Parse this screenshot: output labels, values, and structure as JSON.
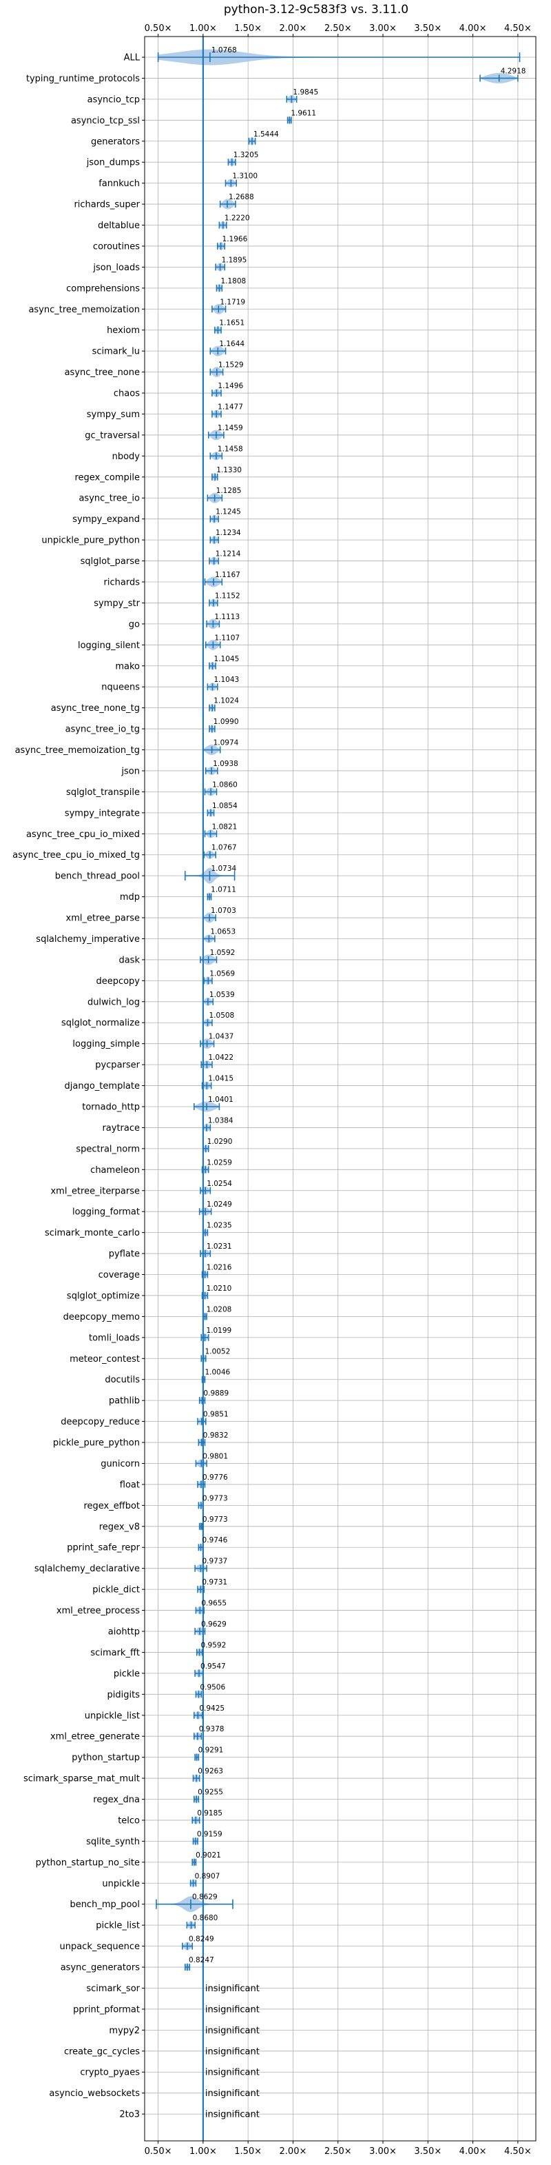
{
  "chart_data": {
    "type": "violin",
    "title": "python-3.12-9c583f3 vs. 3.11.0",
    "xlim": [
      0.35,
      4.7
    ],
    "x_ticks": [
      0.5,
      1.0,
      1.5,
      2.0,
      2.5,
      3.0,
      3.5,
      4.0,
      4.5
    ],
    "x_tick_labels": [
      "0.50×",
      "1.00×",
      "1.50×",
      "2.00×",
      "2.50×",
      "3.00×",
      "3.50×",
      "4.00×",
      "4.50×"
    ],
    "grid": true,
    "reference_line": 1.0,
    "accent_color": "#1f77b4",
    "violin_color": "#aac9e8",
    "benchmarks": [
      {
        "name": "ALL",
        "value": 1.0768,
        "label": "1.0768",
        "range": [
          0.5,
          4.52
        ]
      },
      {
        "name": "typing_runtime_protocols",
        "value": 4.2918,
        "label": "4.2918",
        "range": [
          4.08,
          4.5
        ]
      },
      {
        "name": "asyncio_tcp",
        "value": 1.9845,
        "label": "1.9845",
        "range": [
          1.93,
          2.04
        ]
      },
      {
        "name": "asyncio_tcp_ssl",
        "value": 1.9611,
        "label": "1.9611",
        "range": [
          1.94,
          1.98
        ]
      },
      {
        "name": "generators",
        "value": 1.5444,
        "label": "1.5444",
        "range": [
          1.51,
          1.58
        ]
      },
      {
        "name": "json_dumps",
        "value": 1.3205,
        "label": "1.3205",
        "range": [
          1.28,
          1.36
        ]
      },
      {
        "name": "fannkuch",
        "value": 1.31,
        "label": "1.3100",
        "range": [
          1.25,
          1.37
        ]
      },
      {
        "name": "richards_super",
        "value": 1.2688,
        "label": "1.2688",
        "range": [
          1.19,
          1.36
        ]
      },
      {
        "name": "deltablue",
        "value": 1.222,
        "label": "1.2220",
        "range": [
          1.18,
          1.26
        ]
      },
      {
        "name": "coroutines",
        "value": 1.1966,
        "label": "1.1966",
        "range": [
          1.16,
          1.24
        ]
      },
      {
        "name": "json_loads",
        "value": 1.1895,
        "label": "1.1895",
        "range": [
          1.14,
          1.24
        ]
      },
      {
        "name": "comprehensions",
        "value": 1.1808,
        "label": "1.1808",
        "range": [
          1.15,
          1.21
        ]
      },
      {
        "name": "async_tree_memoization",
        "value": 1.1719,
        "label": "1.1719",
        "range": [
          1.1,
          1.25
        ]
      },
      {
        "name": "hexiom",
        "value": 1.1651,
        "label": "1.1651",
        "range": [
          1.13,
          1.2
        ]
      },
      {
        "name": "scimark_lu",
        "value": 1.1644,
        "label": "1.1644",
        "range": [
          1.08,
          1.25
        ]
      },
      {
        "name": "async_tree_none",
        "value": 1.1529,
        "label": "1.1529",
        "range": [
          1.08,
          1.22
        ]
      },
      {
        "name": "chaos",
        "value": 1.1496,
        "label": "1.1496",
        "range": [
          1.1,
          1.2
        ]
      },
      {
        "name": "sympy_sum",
        "value": 1.1477,
        "label": "1.1477",
        "range": [
          1.1,
          1.2
        ]
      },
      {
        "name": "gc_traversal",
        "value": 1.1459,
        "label": "1.1459",
        "range": [
          1.06,
          1.23
        ]
      },
      {
        "name": "nbody",
        "value": 1.1458,
        "label": "1.1458",
        "range": [
          1.08,
          1.21
        ]
      },
      {
        "name": "regex_compile",
        "value": 1.133,
        "label": "1.1330",
        "range": [
          1.1,
          1.16
        ]
      },
      {
        "name": "async_tree_io",
        "value": 1.1285,
        "label": "1.1285",
        "range": [
          1.05,
          1.21
        ]
      },
      {
        "name": "sympy_expand",
        "value": 1.1245,
        "label": "1.1245",
        "range": [
          1.08,
          1.17
        ]
      },
      {
        "name": "unpickle_pure_python",
        "value": 1.1234,
        "label": "1.1234",
        "range": [
          1.08,
          1.17
        ]
      },
      {
        "name": "sqlglot_parse",
        "value": 1.1214,
        "label": "1.1214",
        "range": [
          1.07,
          1.17
        ]
      },
      {
        "name": "richards",
        "value": 1.1167,
        "label": "1.1167",
        "range": [
          1.02,
          1.21
        ]
      },
      {
        "name": "sympy_str",
        "value": 1.1152,
        "label": "1.1152",
        "range": [
          1.07,
          1.16
        ]
      },
      {
        "name": "go",
        "value": 1.1113,
        "label": "1.1113",
        "range": [
          1.04,
          1.18
        ]
      },
      {
        "name": "logging_silent",
        "value": 1.1107,
        "label": "1.1107",
        "range": [
          1.03,
          1.19
        ]
      },
      {
        "name": "mako",
        "value": 1.1045,
        "label": "1.1045",
        "range": [
          1.07,
          1.14
        ]
      },
      {
        "name": "nqueens",
        "value": 1.1043,
        "label": "1.1043",
        "range": [
          1.05,
          1.16
        ]
      },
      {
        "name": "async_tree_none_tg",
        "value": 1.1024,
        "label": "1.1024",
        "range": [
          1.07,
          1.13
        ]
      },
      {
        "name": "async_tree_io_tg",
        "value": 1.099,
        "label": "1.0990",
        "range": [
          1.07,
          1.13
        ]
      },
      {
        "name": "async_tree_memoization_tg",
        "value": 1.0974,
        "label": "1.0974",
        "range": [
          1.0,
          1.19
        ]
      },
      {
        "name": "json",
        "value": 1.0938,
        "label": "1.0938",
        "range": [
          1.03,
          1.16
        ]
      },
      {
        "name": "sqlglot_transpile",
        "value": 1.086,
        "label": "1.0860",
        "range": [
          1.02,
          1.15
        ]
      },
      {
        "name": "sympy_integrate",
        "value": 1.0854,
        "label": "1.0854",
        "range": [
          1.05,
          1.12
        ]
      },
      {
        "name": "async_tree_cpu_io_mixed",
        "value": 1.0821,
        "label": "1.0821",
        "range": [
          1.02,
          1.15
        ]
      },
      {
        "name": "async_tree_cpu_io_mixed_tg",
        "value": 1.0767,
        "label": "1.0767",
        "range": [
          1.01,
          1.14
        ]
      },
      {
        "name": "bench_thread_pool",
        "value": 1.0734,
        "label": "1.0734",
        "range": [
          0.8,
          1.35
        ]
      },
      {
        "name": "mdp",
        "value": 1.0711,
        "label": "1.0711",
        "range": [
          1.05,
          1.09
        ]
      },
      {
        "name": "xml_etree_parse",
        "value": 1.0703,
        "label": "1.0703",
        "range": [
          1.0,
          1.14
        ]
      },
      {
        "name": "sqlalchemy_imperative",
        "value": 1.0653,
        "label": "1.0653",
        "range": [
          1.0,
          1.13
        ]
      },
      {
        "name": "dask",
        "value": 1.0592,
        "label": "1.0592",
        "range": [
          0.97,
          1.15
        ]
      },
      {
        "name": "deepcopy",
        "value": 1.0569,
        "label": "1.0569",
        "range": [
          1.01,
          1.1
        ]
      },
      {
        "name": "dulwich_log",
        "value": 1.0539,
        "label": "1.0539",
        "range": [
          1.0,
          1.11
        ]
      },
      {
        "name": "sqlglot_normalize",
        "value": 1.0508,
        "label": "1.0508",
        "range": [
          1.0,
          1.1
        ]
      },
      {
        "name": "logging_simple",
        "value": 1.0437,
        "label": "1.0437",
        "range": [
          0.97,
          1.12
        ]
      },
      {
        "name": "pycparser",
        "value": 1.0422,
        "label": "1.0422",
        "range": [
          0.98,
          1.1
        ]
      },
      {
        "name": "django_template",
        "value": 1.0415,
        "label": "1.0415",
        "range": [
          0.99,
          1.09
        ]
      },
      {
        "name": "tornado_http",
        "value": 1.0401,
        "label": "1.0401",
        "range": [
          0.9,
          1.18
        ]
      },
      {
        "name": "raytrace",
        "value": 1.0384,
        "label": "1.0384",
        "range": [
          1.0,
          1.08
        ]
      },
      {
        "name": "spectral_norm",
        "value": 1.029,
        "label": "1.0290",
        "range": [
          1.0,
          1.06
        ]
      },
      {
        "name": "chameleon",
        "value": 1.0259,
        "label": "1.0259",
        "range": [
          0.99,
          1.06
        ]
      },
      {
        "name": "xml_etree_iterparse",
        "value": 1.0254,
        "label": "1.0254",
        "range": [
          0.97,
          1.08
        ]
      },
      {
        "name": "logging_format",
        "value": 1.0249,
        "label": "1.0249",
        "range": [
          0.96,
          1.09
        ]
      },
      {
        "name": "scimark_monte_carlo",
        "value": 1.0235,
        "label": "1.0235",
        "range": [
          1.0,
          1.05
        ]
      },
      {
        "name": "pyflate",
        "value": 1.0231,
        "label": "1.0231",
        "range": [
          0.97,
          1.08
        ]
      },
      {
        "name": "coverage",
        "value": 1.0216,
        "label": "1.0216",
        "range": [
          0.99,
          1.05
        ]
      },
      {
        "name": "sqlglot_optimize",
        "value": 1.021,
        "label": "1.0210",
        "range": [
          0.99,
          1.05
        ]
      },
      {
        "name": "deepcopy_memo",
        "value": 1.0208,
        "label": "1.0208",
        "range": [
          1.0,
          1.04
        ]
      },
      {
        "name": "tomli_loads",
        "value": 1.0199,
        "label": "1.0199",
        "range": [
          0.98,
          1.06
        ]
      },
      {
        "name": "meteor_contest",
        "value": 1.0052,
        "label": "1.0052",
        "range": [
          0.98,
          1.03
        ]
      },
      {
        "name": "docutils",
        "value": 1.0046,
        "label": "1.0046",
        "range": [
          0.99,
          1.02
        ]
      },
      {
        "name": "pathlib",
        "value": 0.9889,
        "label": "0.9889",
        "range": [
          0.96,
          1.02
        ]
      },
      {
        "name": "deepcopy_reduce",
        "value": 0.9851,
        "label": "0.9851",
        "range": [
          0.94,
          1.03
        ]
      },
      {
        "name": "pickle_pure_python",
        "value": 0.9832,
        "label": "0.9832",
        "range": [
          0.95,
          1.02
        ]
      },
      {
        "name": "gunicorn",
        "value": 0.9801,
        "label": "0.9801",
        "range": [
          0.92,
          1.04
        ]
      },
      {
        "name": "float",
        "value": 0.9776,
        "label": "0.9776",
        "range": [
          0.94,
          1.02
        ]
      },
      {
        "name": "regex_effbot",
        "value": 0.9773,
        "label": "0.9773",
        "range": [
          0.95,
          1.0
        ]
      },
      {
        "name": "regex_v8",
        "value": 0.9773,
        "label": "0.9773",
        "range": [
          0.96,
          0.99
        ]
      },
      {
        "name": "pprint_safe_repr",
        "value": 0.9746,
        "label": "0.9746",
        "range": [
          0.95,
          1.0
        ]
      },
      {
        "name": "sqlalchemy_declarative",
        "value": 0.9737,
        "label": "0.9737",
        "range": [
          0.91,
          1.04
        ]
      },
      {
        "name": "pickle_dict",
        "value": 0.9731,
        "label": "0.9731",
        "range": [
          0.94,
          1.01
        ]
      },
      {
        "name": "xml_etree_process",
        "value": 0.9655,
        "label": "0.9655",
        "range": [
          0.92,
          1.01
        ]
      },
      {
        "name": "aiohttp",
        "value": 0.9629,
        "label": "0.9629",
        "range": [
          0.91,
          1.02
        ]
      },
      {
        "name": "scimark_fft",
        "value": 0.9592,
        "label": "0.9592",
        "range": [
          0.93,
          0.99
        ]
      },
      {
        "name": "pickle",
        "value": 0.9547,
        "label": "0.9547",
        "range": [
          0.91,
          1.0
        ]
      },
      {
        "name": "pidigits",
        "value": 0.9506,
        "label": "0.9506",
        "range": [
          0.92,
          0.98
        ]
      },
      {
        "name": "unpickle_list",
        "value": 0.9425,
        "label": "0.9425",
        "range": [
          0.9,
          0.99
        ]
      },
      {
        "name": "xml_etree_generate",
        "value": 0.9378,
        "label": "0.9378",
        "range": [
          0.9,
          0.98
        ]
      },
      {
        "name": "python_startup",
        "value": 0.9291,
        "label": "0.9291",
        "range": [
          0.91,
          0.95
        ]
      },
      {
        "name": "scimark_sparse_mat_mult",
        "value": 0.9263,
        "label": "0.9263",
        "range": [
          0.89,
          0.96
        ]
      },
      {
        "name": "regex_dna",
        "value": 0.9255,
        "label": "0.9255",
        "range": [
          0.9,
          0.95
        ]
      },
      {
        "name": "telco",
        "value": 0.9185,
        "label": "0.9185",
        "range": [
          0.88,
          0.96
        ]
      },
      {
        "name": "sqlite_synth",
        "value": 0.9159,
        "label": "0.9159",
        "range": [
          0.89,
          0.94
        ]
      },
      {
        "name": "python_startup_no_site",
        "value": 0.9021,
        "label": "0.9021",
        "range": [
          0.88,
          0.92
        ]
      },
      {
        "name": "unpickle",
        "value": 0.8907,
        "label": "0.8907",
        "range": [
          0.86,
          0.92
        ]
      },
      {
        "name": "bench_mp_pool",
        "value": 0.8629,
        "label": "0.8629",
        "range": [
          0.48,
          1.33
        ]
      },
      {
        "name": "pickle_list",
        "value": 0.868,
        "label": "0.8680",
        "range": [
          0.82,
          0.91
        ]
      },
      {
        "name": "unpack_sequence",
        "value": 0.8249,
        "label": "0.8249",
        "range": [
          0.77,
          0.88
        ]
      },
      {
        "name": "async_generators",
        "value": 0.8247,
        "label": "0.8247",
        "range": [
          0.8,
          0.85
        ]
      },
      {
        "name": "scimark_sor",
        "value": null,
        "label": "insignificant"
      },
      {
        "name": "pprint_pformat",
        "value": null,
        "label": "insignificant"
      },
      {
        "name": "mypy2",
        "value": null,
        "label": "insignificant"
      },
      {
        "name": "create_gc_cycles",
        "value": null,
        "label": "insignificant"
      },
      {
        "name": "crypto_pyaes",
        "value": null,
        "label": "insignificant"
      },
      {
        "name": "asyncio_websockets",
        "value": null,
        "label": "insignificant"
      },
      {
        "name": "2to3",
        "value": null,
        "label": "insignificant"
      }
    ]
  }
}
